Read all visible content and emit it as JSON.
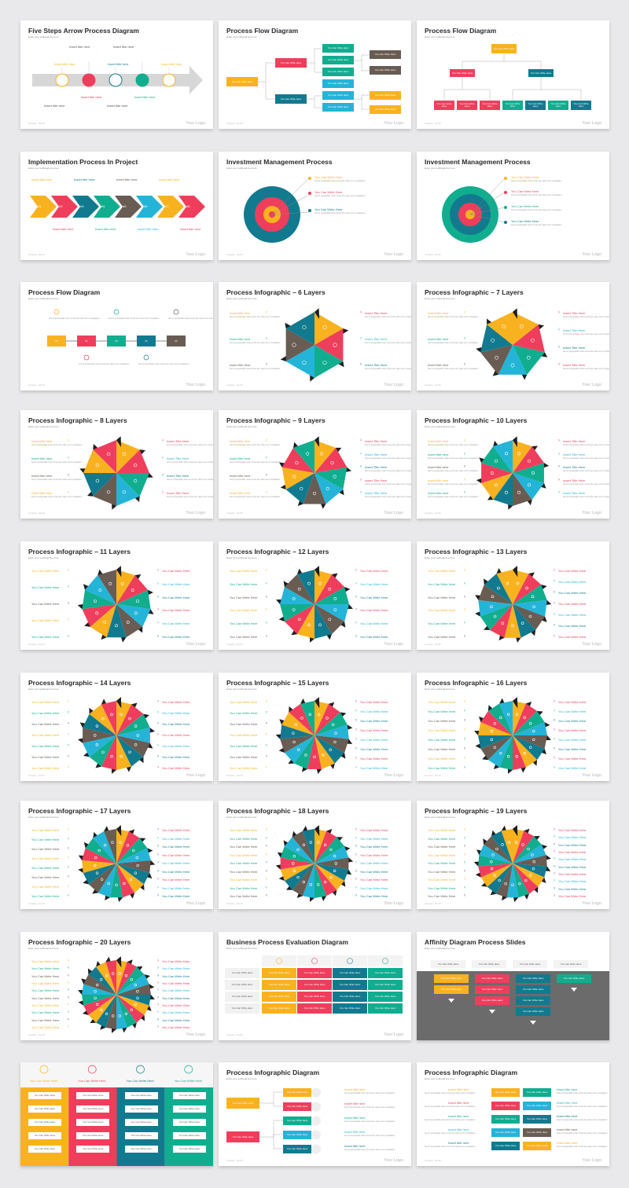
{
  "common": {
    "subtitle": "Enter your subhead line here",
    "logo": "Your Logo",
    "footer": "Company · Nov'2X",
    "write_here": "You Can Write Here",
    "insert_title": "Insert title here",
    "insert_title_cap": "Insert Title Here",
    "lorem": "Sed ut perspiciatis unde omnis iste natus error voluptatem"
  },
  "colors": {
    "yellow": "#f9b21f",
    "red": "#ef3e5c",
    "teal": "#11ad8f",
    "cyan": "#24b4d7",
    "dark": "#685c53",
    "navy": "#127a8e",
    "grey": "#6b6b6b"
  },
  "slides": [
    {
      "title": "Five Steps Arrow Process Diagram"
    },
    {
      "title": "Process Flow Diagram"
    },
    {
      "title": "Process Flow Diagram"
    },
    {
      "title": "Implementation Process In Project"
    },
    {
      "title": "Investment Management Process"
    },
    {
      "title": "Investment Management Process"
    },
    {
      "title": "Process Flow Diagram"
    },
    {
      "title": "Process Infographic – 6 Layers"
    },
    {
      "title": "Process Infographic – 7 Layers"
    },
    {
      "title": "Process Infographic – 8 Layers"
    },
    {
      "title": "Process Infographic – 9 Layers"
    },
    {
      "title": "Process Infographic – 10 Layers"
    },
    {
      "title": "Process Infographic – 11 Layers"
    },
    {
      "title": "Process Infographic – 12 Layers"
    },
    {
      "title": "Process Infographic – 13 Layers"
    },
    {
      "title": "Process Infographic – 14 Layers"
    },
    {
      "title": "Process Infographic – 15 Layers"
    },
    {
      "title": "Process Infographic – 16 Layers"
    },
    {
      "title": "Process Infographic – 17 Layers"
    },
    {
      "title": "Process Infographic – 18 Layers"
    },
    {
      "title": "Process Infographic – 19 Layers"
    },
    {
      "title": "Process Infographic – 20 Layers"
    },
    {
      "title": "Business Process Evaluation Diagram"
    },
    {
      "title": "Affinity Diagram Process Slides"
    },
    {
      "title": ""
    },
    {
      "title": "Process Infographic Diagram"
    },
    {
      "title": "Process Infographic Diagram"
    }
  ],
  "step_numbers": [
    "01",
    "02",
    "03",
    "04",
    "05"
  ],
  "impl_numbers": [
    "#1",
    "#2",
    "#3",
    "#4",
    "#5",
    "#6",
    "#7",
    "#8"
  ]
}
